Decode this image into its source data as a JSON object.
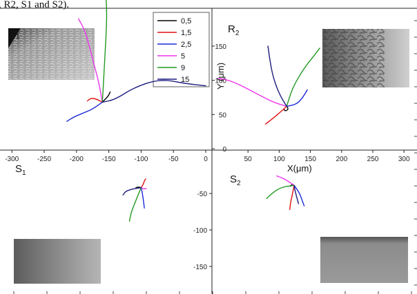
{
  "caption": ", R2, S1 and S2).",
  "axis_labels": {
    "x": "X(μm)",
    "y": "Y (μm)"
  },
  "panels": [
    {
      "name": "R",
      "sub": "1"
    },
    {
      "name": "R",
      "sub": "2"
    },
    {
      "name": "S",
      "sub": "1"
    },
    {
      "name": "S",
      "sub": "2"
    }
  ],
  "colors": {
    "0,5": "#000000",
    "1,5": "#e01010",
    "2,5": "#1a2ad8",
    "5": "#ee33ee",
    "9": "#229922",
    "15": "#1c1c80"
  },
  "chart_data": {
    "type": "line",
    "title": "",
    "legend": {
      "placement": "top-right of panel R1",
      "entries": [
        "0,5",
        "1,5",
        "2,5",
        "5",
        "9",
        "15"
      ]
    },
    "x_ticks_left": [
      "-300",
      "-250",
      "-200",
      "-150",
      "-100",
      "-50",
      "0"
    ],
    "x_ticks_right": [
      "50",
      "100",
      "150",
      "200",
      "250",
      "300"
    ],
    "y_ticks_top": [
      "0",
      "50",
      "100",
      "150"
    ],
    "y_ticks_bottom": [
      "-50",
      "-100",
      "-150"
    ],
    "grid": false,
    "series": [
      {
        "name": "0,5",
        "panels": {
          "R1": [
            [
              -160,
              68
            ],
            [
              -155,
              73
            ],
            [
              -150,
              78
            ],
            [
              -148,
              83
            ]
          ],
          "R2": [
            [
              112,
              62
            ],
            [
              115,
              58
            ],
            [
              110,
              55
            ],
            [
              108,
              57
            ]
          ],
          "S1": [
            [
              -108,
              -42
            ],
            [
              -104,
              -41
            ],
            [
              -100,
              -42
            ]
          ],
          "S2": [
            [
              118,
              -40
            ],
            [
              121,
              -37
            ],
            [
              124,
              -39
            ]
          ]
        }
      },
      {
        "name": "1,5",
        "panels": {
          "R1": [
            [
              -160,
              68
            ],
            [
              -170,
              73
            ],
            [
              -178,
              74
            ],
            [
              -183,
              70
            ]
          ],
          "R2": [
            [
              112,
              62
            ],
            [
              100,
              52
            ],
            [
              88,
              43
            ],
            [
              78,
              36
            ]
          ],
          "S1": [
            [
              -100,
              -42
            ],
            [
              -97,
              -38
            ],
            [
              -95,
              -33
            ],
            [
              -93,
              -30
            ]
          ],
          "S2": [
            [
              124,
              -39
            ],
            [
              121,
              -52
            ],
            [
              118,
              -63
            ],
            [
              117,
              -72
            ]
          ]
        }
      },
      {
        "name": "2,5",
        "panels": {
          "R1": [
            [
              -160,
              68
            ],
            [
              -175,
              58
            ],
            [
              -190,
              52
            ],
            [
              -205,
              46
            ],
            [
              -215,
              40
            ]
          ],
          "R2": [
            [
              112,
              62
            ],
            [
              128,
              65
            ],
            [
              138,
              75
            ],
            [
              145,
              86
            ]
          ],
          "S1": [
            [
              -100,
              -42
            ],
            [
              -98,
              -50
            ],
            [
              -96,
              -62
            ],
            [
              -95,
              -70
            ]
          ],
          "S2": [
            [
              124,
              -39
            ],
            [
              133,
              -50
            ],
            [
              137,
              -60
            ],
            [
              140,
              -67
            ]
          ]
        }
      },
      {
        "name": "5",
        "panels": {
          "R1": [
            [
              -160,
              68
            ],
            [
              -165,
              95
            ],
            [
              -172,
              120
            ],
            [
              -180,
              150
            ],
            [
              -188,
              175
            ],
            [
              -197,
              190
            ]
          ],
          "R2": [
            [
              112,
              62
            ],
            [
              90,
              68
            ],
            [
              65,
              80
            ],
            [
              40,
              92
            ],
            [
              20,
              100
            ],
            [
              2,
              103
            ]
          ],
          "S1": [
            [
              -100,
              -42
            ],
            [
              -96,
              -44
            ],
            [
              -92,
              -43
            ]
          ],
          "S2": [
            [
              124,
              -39
            ],
            [
              112,
              -32
            ],
            [
              103,
              -28
            ],
            [
              96,
              -26
            ]
          ]
        }
      },
      {
        "name": "9",
        "panels": {
          "R1": [
            [
              -160,
              68
            ],
            [
              -158,
              100
            ],
            [
              -156,
              135
            ],
            [
              -154,
              170
            ],
            [
              -153,
              200
            ],
            [
              -155,
              230
            ]
          ],
          "R2": [
            [
              112,
              62
            ],
            [
              118,
              80
            ],
            [
              125,
              95
            ],
            [
              140,
              118
            ],
            [
              155,
              135
            ],
            [
              165,
              147
            ]
          ],
          "S1": [
            [
              -100,
              -42
            ],
            [
              -106,
              -55
            ],
            [
              -112,
              -68
            ],
            [
              -116,
              -78
            ],
            [
              -118,
              -88
            ]
          ],
          "S2": [
            [
              124,
              -39
            ],
            [
              112,
              -40
            ],
            [
              100,
              -43
            ],
            [
              88,
              -50
            ],
            [
              80,
              -57
            ]
          ]
        }
      },
      {
        "name": "15",
        "panels": {
          "R1": [
            [
              -160,
              68
            ],
            [
              -140,
              72
            ],
            [
              -110,
              90
            ],
            [
              -70,
              102
            ],
            [
              -30,
              95
            ],
            [
              0,
              92
            ]
          ],
          "R2": [
            [
              112,
              62
            ],
            [
              100,
              80
            ],
            [
              90,
              105
            ],
            [
              85,
              130
            ],
            [
              82,
              150
            ]
          ],
          "S1": [
            [
              -100,
              -42
            ],
            [
              -114,
              -44
            ],
            [
              -124,
              -47
            ],
            [
              -128,
              -52
            ]
          ],
          "S2": [
            [
              124,
              -39
            ],
            [
              125,
              -45
            ],
            [
              128,
              -55
            ],
            [
              131,
              -64
            ]
          ]
        }
      }
    ]
  }
}
